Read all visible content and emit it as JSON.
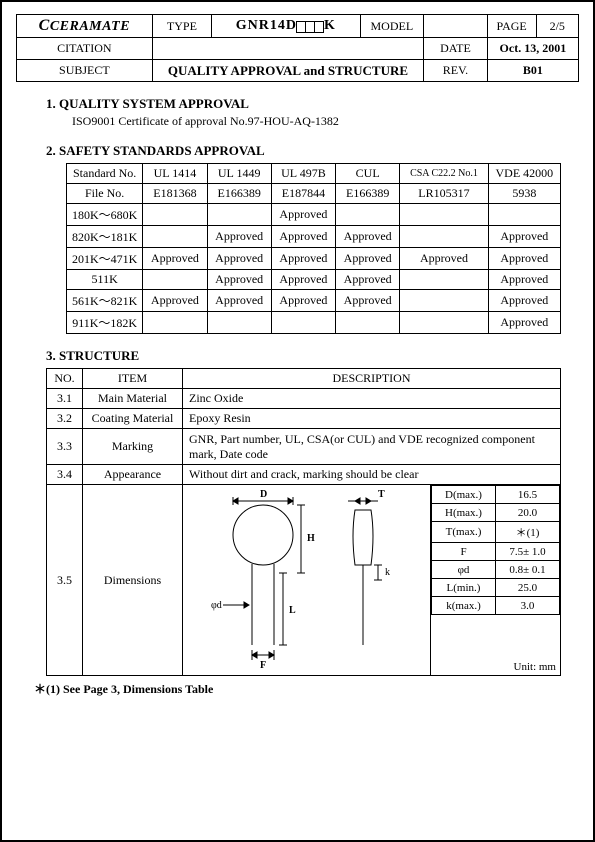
{
  "header": {
    "company": "CERAMATE",
    "type_label": "TYPE",
    "type_value": "GNR14D",
    "type_suffix": "K",
    "model_label": "MODEL",
    "model_value": "",
    "page_label": "PAGE",
    "page_value": "2/5",
    "citation_label": "CITATION",
    "date_label": "DATE",
    "date_value": "Oct. 13, 2001",
    "subject_label": "SUBJECT",
    "subject_value": "QUALITY APPROVAL and STRUCTURE",
    "rev_label": "REV.",
    "rev_value": "B01"
  },
  "s1": {
    "title": "1. QUALITY SYSTEM APPROVAL",
    "line": "ISO9001 Certificate of approval No.97-HOU-AQ-1382"
  },
  "s2": {
    "title": "2. SAFETY STANDARDS APPROVAL",
    "cols": [
      "Standard No.",
      "UL 1414",
      "UL 1449",
      "UL 497B",
      "CUL",
      "CSA C22.2 No.1",
      "VDE 42000"
    ],
    "file_row": [
      "File No.",
      "E181368",
      "E166389",
      "E187844",
      "E166389",
      "LR105317",
      "5938"
    ],
    "rows": [
      [
        "180K～680K",
        "",
        "",
        "Approved",
        "",
        "",
        ""
      ],
      [
        "820K～181K",
        "",
        "Approved",
        "Approved",
        "Approved",
        "",
        "Approved"
      ],
      [
        "201K～471K",
        "Approved",
        "Approved",
        "Approved",
        "Approved",
        "Approved",
        "Approved"
      ],
      [
        "511K",
        "",
        "Approved",
        "Approved",
        "Approved",
        "",
        "Approved"
      ],
      [
        "561K～821K",
        "Approved",
        "Approved",
        "Approved",
        "Approved",
        "",
        "Approved"
      ],
      [
        "911K～182K",
        "",
        "",
        "",
        "",
        "",
        "Approved"
      ]
    ]
  },
  "s3": {
    "title": "3. STRUCTURE",
    "head": [
      "NO.",
      "ITEM",
      "DESCRIPTION"
    ],
    "rows": [
      {
        "no": "3.1",
        "item": "Main Material",
        "desc": "Zinc Oxide"
      },
      {
        "no": "3.2",
        "item": "Coating Material",
        "desc": "Epoxy Resin"
      },
      {
        "no": "3.3",
        "item": "Marking",
        "desc": "GNR, Part number, UL, CSA(or CUL) and VDE recognized component mark, Date code"
      },
      {
        "no": "3.4",
        "item": "Appearance",
        "desc": "Without dirt and crack, marking should be clear"
      }
    ],
    "dim_no": "3.5",
    "dim_item": "Dimensions",
    "dim_table": [
      [
        "D(max.)",
        "16.5"
      ],
      [
        "H(max.)",
        "20.0"
      ],
      [
        "T(max.)",
        "＊(1)"
      ],
      [
        "F",
        "7.5± 1.0"
      ],
      [
        "φd",
        "0.8± 0.1"
      ],
      [
        "L(min.)",
        "25.0"
      ],
      [
        "k(max.)",
        "3.0"
      ]
    ],
    "unit": "Unit: mm",
    "diagram_labels": {
      "D": "D",
      "T": "T",
      "H": "H",
      "L": "L",
      "F": "F",
      "phi_d": "φd",
      "k": "k"
    }
  },
  "footnote": "＊(1) See Page 3, Dimensions Table",
  "colors": {
    "text": "#000000",
    "bg": "#ffffff",
    "border": "#000000"
  }
}
